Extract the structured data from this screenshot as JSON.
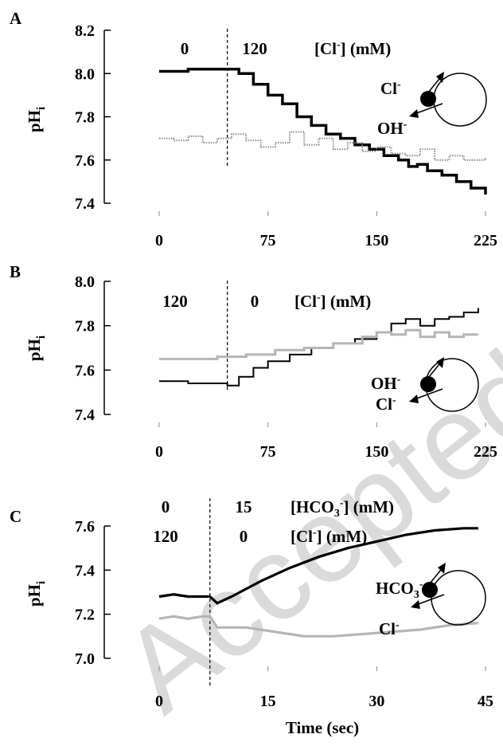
{
  "watermark": "Accepted Manuscript",
  "chart_data": [
    {
      "type": "line",
      "panel_letter": "A",
      "ylabel": "pH",
      "ylabel_sub": "i",
      "xlim": [
        0,
        225
      ],
      "ylim": [
        7.4,
        8.2
      ],
      "x_ticks": [
        "0",
        "75",
        "150",
        "225"
      ],
      "y_ticks": [
        "8.2",
        "8.0",
        "7.8",
        "7.6",
        "7.4"
      ],
      "solution_change_x": 47,
      "conditions": [
        {
          "before": "0",
          "after": "120",
          "label": "[Cl",
          "label_sup": "-",
          "label_tail": "] (mM)"
        }
      ],
      "series": [
        {
          "color": "#000000",
          "style": "solid-thick",
          "x": [
            0,
            10,
            20,
            30,
            40,
            47,
            55,
            65,
            75,
            85,
            95,
            105,
            115,
            125,
            135,
            145,
            155,
            165,
            172,
            178,
            185,
            195,
            205,
            215,
            225
          ],
          "y": [
            8.01,
            8.01,
            8.02,
            8.02,
            8.02,
            8.02,
            8.0,
            7.95,
            7.9,
            7.86,
            7.8,
            7.76,
            7.72,
            7.7,
            7.67,
            7.65,
            7.62,
            7.6,
            7.57,
            7.58,
            7.55,
            7.53,
            7.5,
            7.47,
            7.44
          ]
        },
        {
          "color": "#8c8c8c",
          "style": "dotted",
          "x": [
            0,
            10,
            20,
            30,
            40,
            50,
            60,
            70,
            80,
            90,
            100,
            110,
            120,
            130,
            140,
            150,
            160,
            170,
            180,
            190,
            200,
            210,
            225
          ],
          "y": [
            7.7,
            7.69,
            7.71,
            7.68,
            7.7,
            7.72,
            7.69,
            7.66,
            7.68,
            7.73,
            7.67,
            7.7,
            7.65,
            7.68,
            7.64,
            7.66,
            7.63,
            7.62,
            7.65,
            7.6,
            7.62,
            7.6,
            7.61
          ]
        }
      ],
      "exchanger": {
        "top_ion": "Cl",
        "top_sup": "-",
        "bottom_ion": "OH",
        "bottom_sup": "-"
      }
    },
    {
      "type": "line",
      "panel_letter": "B",
      "ylabel": "pH",
      "ylabel_sub": "i",
      "xlim": [
        0,
        225
      ],
      "ylim": [
        7.4,
        8.0
      ],
      "x_ticks": [
        "0",
        "75",
        "150",
        "225"
      ],
      "y_ticks": [
        "8.0",
        "7.8",
        "7.6",
        "7.4"
      ],
      "solution_change_x": 47,
      "conditions": [
        {
          "before": "120",
          "after": "0",
          "label": "[Cl",
          "label_sup": "-",
          "label_tail": "] (mM)"
        }
      ],
      "series": [
        {
          "color": "#000000",
          "style": "solid",
          "x": [
            0,
            10,
            20,
            30,
            40,
            47,
            55,
            65,
            75,
            90,
            105,
            120,
            135,
            150,
            160,
            170,
            180,
            190,
            200,
            210,
            220
          ],
          "y": [
            7.55,
            7.55,
            7.54,
            7.54,
            7.54,
            7.53,
            7.57,
            7.61,
            7.64,
            7.67,
            7.7,
            7.72,
            7.74,
            7.77,
            7.81,
            7.83,
            7.8,
            7.83,
            7.84,
            7.86,
            7.88
          ]
        },
        {
          "color": "#b5b5b5",
          "style": "solid",
          "x": [
            0,
            20,
            40,
            60,
            80,
            100,
            120,
            140,
            150,
            160,
            170,
            180,
            190,
            200,
            210,
            220
          ],
          "y": [
            7.65,
            7.65,
            7.66,
            7.67,
            7.69,
            7.7,
            7.72,
            7.75,
            7.77,
            7.76,
            7.78,
            7.75,
            7.77,
            7.75,
            7.76,
            7.76
          ]
        }
      ],
      "exchanger": {
        "top_ion": "OH",
        "top_sup": "-",
        "bottom_ion": "Cl",
        "bottom_sup": "-"
      }
    },
    {
      "type": "line",
      "panel_letter": "C",
      "ylabel": "pH",
      "ylabel_sub": "i",
      "xlabel": "Time (sec)",
      "xlim": [
        0,
        45
      ],
      "ylim": [
        7.0,
        7.6
      ],
      "x_ticks": [
        "0",
        "15",
        "30",
        "45"
      ],
      "y_ticks": [
        "7.6",
        "7.4",
        "7.2",
        "7.0"
      ],
      "solution_change_x": 7,
      "conditions": [
        {
          "before": "0",
          "after": "15",
          "label": "[HCO",
          "label_sub": "3",
          "label_sup": "-",
          "label_tail": "] (mM)"
        },
        {
          "before": "120",
          "after": "0",
          "label": "[Cl",
          "label_sup": "-",
          "label_tail": "] (mM)"
        }
      ],
      "series": [
        {
          "color": "#000000",
          "style": "solid-thick",
          "x": [
            0,
            2,
            4,
            6,
            7,
            8,
            10,
            14,
            18,
            22,
            26,
            30,
            34,
            38,
            42,
            44
          ],
          "y": [
            7.28,
            7.29,
            7.28,
            7.28,
            7.28,
            7.25,
            7.28,
            7.35,
            7.41,
            7.46,
            7.5,
            7.53,
            7.56,
            7.58,
            7.59,
            7.59
          ]
        },
        {
          "color": "#b5b5b5",
          "style": "solid-thick",
          "x": [
            0,
            2,
            4,
            6,
            7,
            8,
            12,
            16,
            20,
            24,
            28,
            32,
            36,
            40,
            44
          ],
          "y": [
            7.18,
            7.19,
            7.18,
            7.19,
            7.19,
            7.14,
            7.14,
            7.12,
            7.1,
            7.1,
            7.11,
            7.12,
            7.13,
            7.15,
            7.16
          ]
        }
      ],
      "exchanger": {
        "top_ion": "HCO",
        "top_sub": "3",
        "top_sup": "-",
        "bottom_ion": "Cl",
        "bottom_sup": "-"
      }
    }
  ]
}
